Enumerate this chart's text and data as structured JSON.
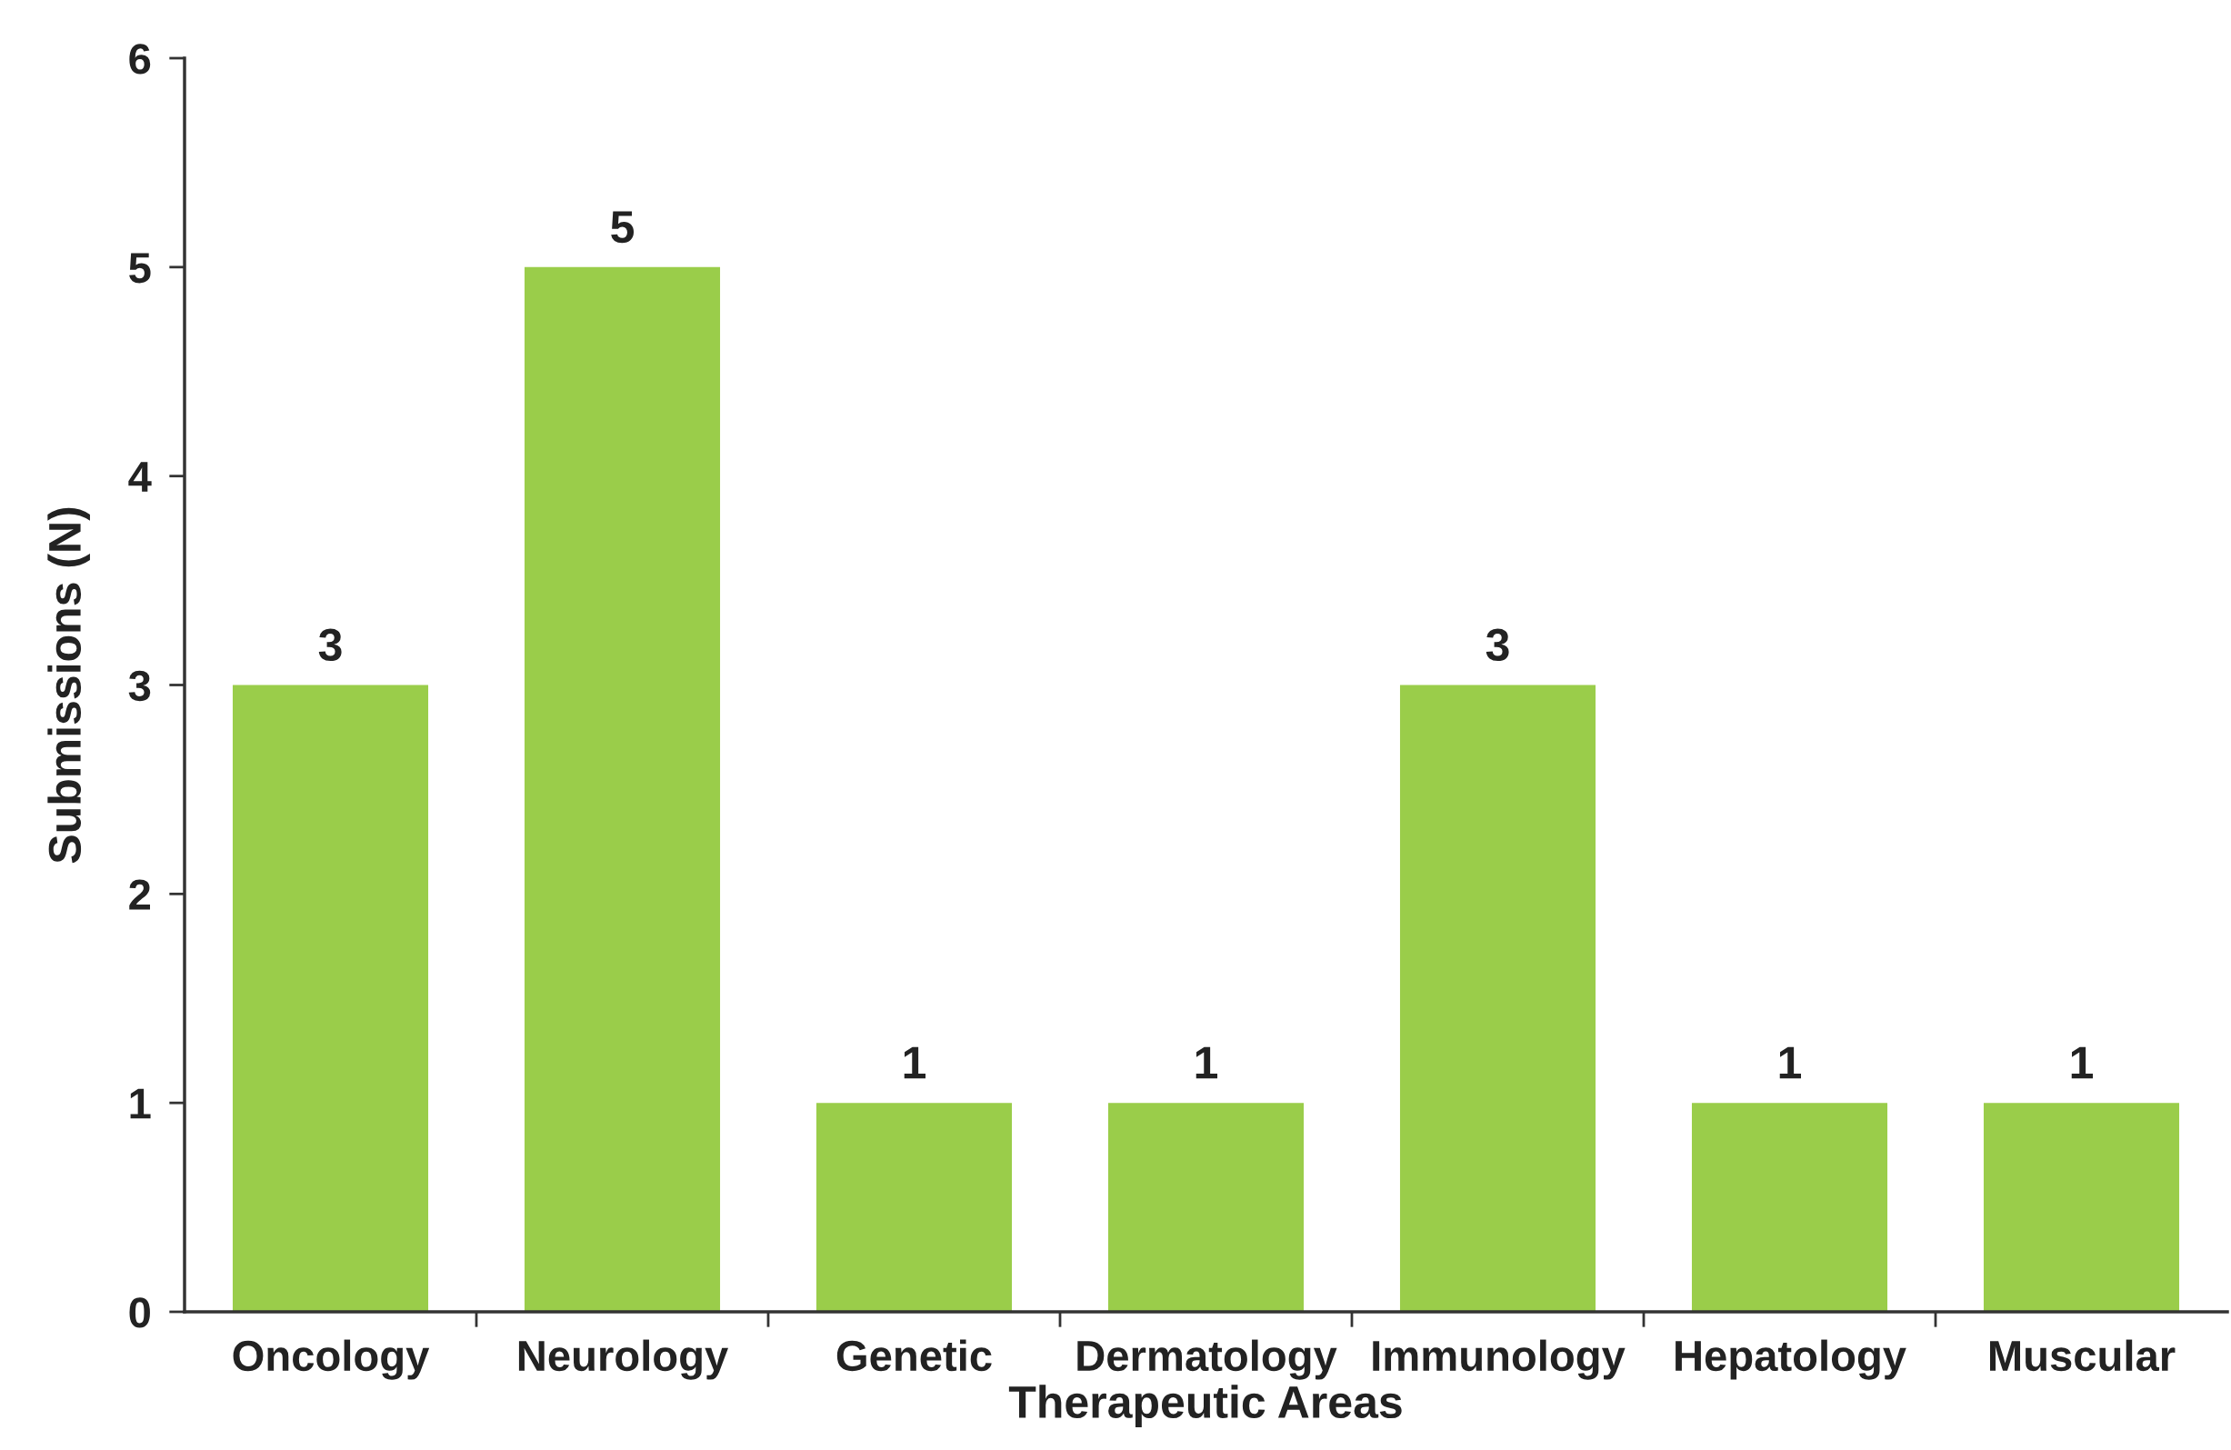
{
  "chart_data": {
    "type": "bar",
    "xlabel": "Therapeutic Areas",
    "ylabel": "Submissions (N)",
    "categories": [
      "Oncology",
      "Neurology",
      "Genetic",
      "Dermatology",
      "Immunology",
      "Hepatology",
      "Muscular"
    ],
    "values": [
      3,
      5,
      1,
      1,
      3,
      1,
      1
    ],
    "color": "#9acd4a",
    "ylim": [
      0,
      6
    ],
    "yticks": [
      0,
      1,
      2,
      3,
      4,
      5,
      6
    ],
    "data_labels": true,
    "grid": false
  }
}
